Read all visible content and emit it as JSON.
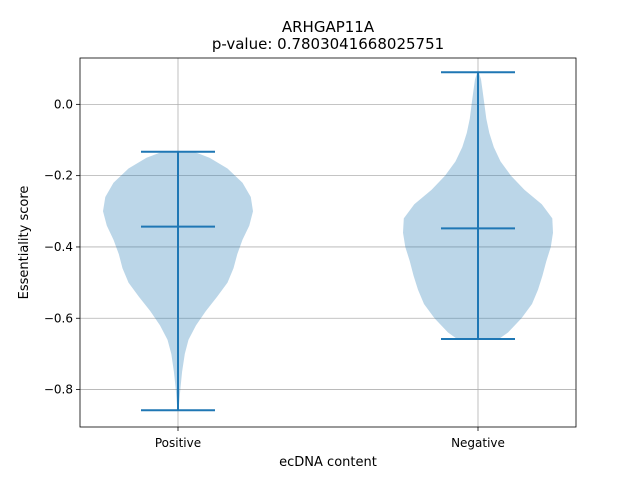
{
  "chart_data": {
    "type": "violin",
    "title": "ARHGAP11A",
    "subtitle": "p-value: 0.7803041668025751",
    "xlabel": "ecDNA content",
    "ylabel": "Essentiality score",
    "categories": [
      "Positive",
      "Negative"
    ],
    "ylim": [
      -0.905,
      0.13
    ],
    "yticks": [
      0.0,
      -0.2,
      -0.4,
      -0.6,
      -0.8
    ],
    "ytick_labels": [
      "0.0",
      "−0.2",
      "−0.4",
      "−0.6",
      "−0.8"
    ],
    "grid": true,
    "color": "#1f77b4",
    "violins": [
      {
        "category": "Positive",
        "min": -0.858,
        "median": -0.343,
        "max": -0.133,
        "profile": [
          [
            -0.858,
            0.005
          ],
          [
            -0.84,
            0.015
          ],
          [
            -0.8,
            0.03
          ],
          [
            -0.75,
            0.055
          ],
          [
            -0.7,
            0.09
          ],
          [
            -0.66,
            0.14
          ],
          [
            -0.62,
            0.24
          ],
          [
            -0.58,
            0.37
          ],
          [
            -0.54,
            0.52
          ],
          [
            -0.5,
            0.66
          ],
          [
            -0.46,
            0.74
          ],
          [
            -0.42,
            0.79
          ],
          [
            -0.38,
            0.86
          ],
          [
            -0.34,
            0.95
          ],
          [
            -0.3,
            1.0
          ],
          [
            -0.26,
            0.97
          ],
          [
            -0.22,
            0.86
          ],
          [
            -0.18,
            0.66
          ],
          [
            -0.15,
            0.42
          ],
          [
            -0.133,
            0.21
          ]
        ]
      },
      {
        "category": "Negative",
        "min": -0.658,
        "median": -0.348,
        "max": 0.09,
        "profile": [
          [
            -0.658,
            0.28
          ],
          [
            -0.64,
            0.4
          ],
          [
            -0.6,
            0.58
          ],
          [
            -0.56,
            0.72
          ],
          [
            -0.52,
            0.8
          ],
          [
            -0.48,
            0.86
          ],
          [
            -0.44,
            0.91
          ],
          [
            -0.4,
            0.97
          ],
          [
            -0.36,
            1.0
          ],
          [
            -0.32,
            0.99
          ],
          [
            -0.28,
            0.85
          ],
          [
            -0.24,
            0.62
          ],
          [
            -0.2,
            0.44
          ],
          [
            -0.16,
            0.3
          ],
          [
            -0.12,
            0.21
          ],
          [
            -0.08,
            0.15
          ],
          [
            -0.04,
            0.11
          ],
          [
            0.0,
            0.085
          ],
          [
            0.04,
            0.06
          ],
          [
            0.07,
            0.04
          ],
          [
            0.09,
            0.01
          ]
        ]
      }
    ]
  }
}
